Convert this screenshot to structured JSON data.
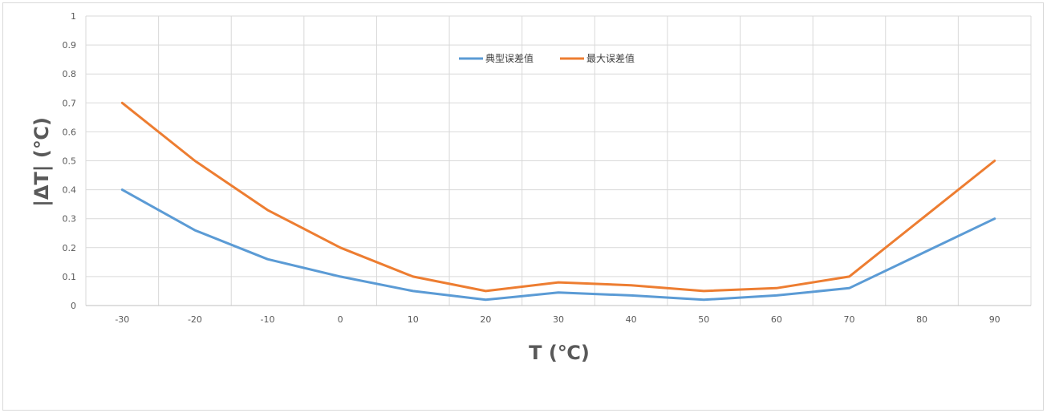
{
  "chart_data": {
    "type": "line",
    "title": "",
    "xlabel": "T (℃)",
    "ylabel": "|ΔT| (℃)",
    "x": [
      -30,
      -20,
      -10,
      0,
      10,
      20,
      30,
      40,
      50,
      60,
      70,
      80,
      90
    ],
    "x_tick_labels": [
      "-30",
      "-20",
      "-10",
      "0",
      "10",
      "20",
      "30",
      "40",
      "50",
      "60",
      "70",
      "80",
      "90"
    ],
    "y_tick_labels": [
      "0",
      "0.1",
      "0.2",
      "0.3",
      "0.4",
      "0.5",
      "0.6",
      "0.7",
      "0.8",
      "0.9",
      "1"
    ],
    "ylim": [
      0,
      1
    ],
    "grid": true,
    "legend_position": "top-center",
    "series": [
      {
        "name": "典型误差值",
        "color": "#5b9bd5",
        "values": [
          0.4,
          0.26,
          0.16,
          0.1,
          0.05,
          0.02,
          0.045,
          0.035,
          0.02,
          0.035,
          0.06,
          0.18,
          0.3
        ]
      },
      {
        "name": "最大误差值",
        "color": "#ed7d31",
        "values": [
          0.7,
          0.5,
          0.33,
          0.2,
          0.1,
          0.05,
          0.08,
          0.07,
          0.05,
          0.06,
          0.1,
          0.3,
          0.5
        ]
      }
    ]
  }
}
